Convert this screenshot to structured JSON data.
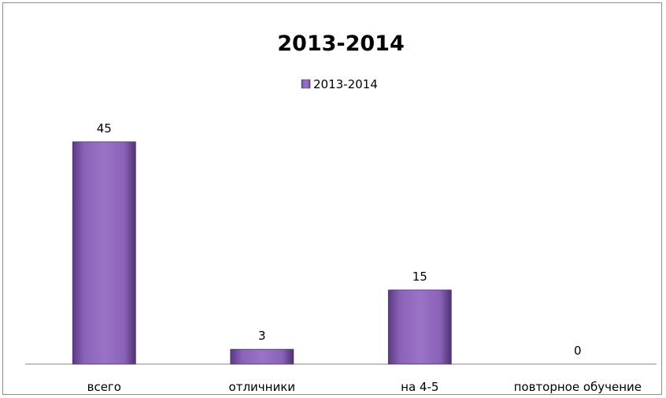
{
  "chart_data": {
    "type": "bar",
    "title": "2013-2014",
    "categories": [
      "всего",
      "отличники",
      "на 4-5",
      "повторное обучение"
    ],
    "series": [
      {
        "name": "2013-2014",
        "values": [
          45,
          3,
          15,
          0
        ],
        "color": "#7b52a8"
      }
    ],
    "data_labels": [
      "45",
      "3",
      "15",
      "0"
    ],
    "ylim": [
      0,
      50
    ],
    "xlabel": "",
    "ylabel": "",
    "grid": false,
    "legend_position": "top-center"
  }
}
